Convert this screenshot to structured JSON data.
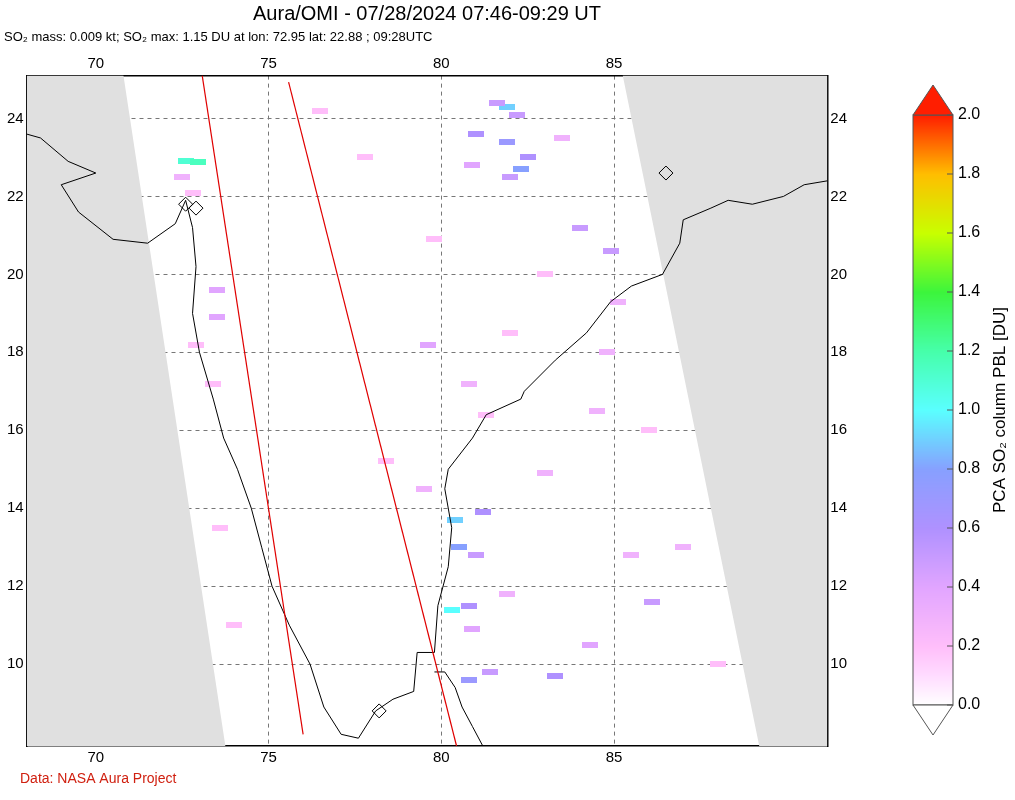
{
  "chart_data": {
    "type": "scatter",
    "title": "Aura/OMI - 07/28/2024 07:46-09:29 UT",
    "subtitle": "SO₂ mass: 0.009 kt; SO₂ max: 1.15 DU at lon: 72.95 lat: 22.88 ; 09:28UTC",
    "source": "Data: NASA Aura Project",
    "xlim": [
      68.0,
      91.17
    ],
    "xticks": [
      70,
      75,
      80,
      85
    ],
    "ylim": [
      7.9,
      25.1
    ],
    "yticks": [
      10,
      12,
      14,
      16,
      18,
      20,
      22,
      24
    ],
    "grid": true,
    "points": {
      "lon": [
        72.6,
        72.95,
        72.5,
        72.8,
        73.5,
        73.5,
        72.9,
        73.4,
        81.9,
        81.6,
        82.2,
        81.0,
        81.9,
        82.5,
        82.3,
        82.0,
        80.9,
        83.5,
        84.0,
        84.9,
        85.1,
        84.8,
        79.6,
        80.8,
        81.3,
        80.4,
        81.2,
        80.5,
        81.0,
        80.3,
        80.8,
        80.9,
        81.9,
        80.8,
        81.4,
        83.3,
        84.3,
        86.1,
        85.5,
        87.0,
        83.0,
        86.0,
        78.4,
        79.5,
        82.0,
        76.5,
        77.8,
        84.5,
        88.0,
        83.0,
        79.8,
        74.0,
        73.6
      ],
      "lat": [
        22.9,
        22.88,
        22.5,
        22.1,
        19.6,
        18.9,
        18.2,
        17.2,
        24.3,
        24.4,
        24.1,
        23.6,
        23.4,
        23.0,
        22.7,
        22.5,
        22.8,
        23.5,
        21.2,
        20.6,
        19.3,
        18.0,
        18.2,
        17.2,
        16.4,
        13.7,
        13.9,
        13.0,
        12.8,
        11.4,
        11.5,
        10.9,
        11.8,
        9.6,
        9.8,
        9.7,
        10.5,
        11.6,
        12.8,
        13.0,
        14.9,
        16.0,
        15.2,
        14.5,
        18.5,
        24.2,
        23.0,
        16.5,
        10.0,
        20.0,
        20.9,
        11.0,
        13.5
      ],
      "values": [
        1.1,
        1.15,
        0.3,
        0.2,
        0.4,
        0.4,
        0.2,
        0.2,
        0.9,
        0.5,
        0.5,
        0.6,
        0.7,
        0.6,
        0.8,
        0.5,
        0.4,
        0.3,
        0.5,
        0.5,
        0.3,
        0.3,
        0.4,
        0.3,
        0.2,
        0.9,
        0.6,
        0.8,
        0.5,
        1.0,
        0.6,
        0.4,
        0.3,
        0.7,
        0.5,
        0.6,
        0.4,
        0.5,
        0.3,
        0.3,
        0.3,
        0.2,
        0.2,
        0.3,
        0.2,
        0.2,
        0.2,
        0.3,
        0.2,
        0.2,
        0.2,
        0.2,
        0.2
      ]
    },
    "coastlines": [
      [
        [
          68.0,
          23.6
        ],
        [
          68.4,
          23.5
        ],
        [
          69.2,
          22.9
        ],
        [
          70.0,
          22.6
        ],
        [
          69.0,
          22.3
        ],
        [
          69.5,
          21.6
        ],
        [
          70.5,
          20.9
        ],
        [
          71.5,
          20.8
        ],
        [
          72.3,
          21.3
        ],
        [
          72.6,
          21.9
        ],
        [
          72.8,
          21.2
        ],
        [
          72.9,
          20.2
        ],
        [
          72.8,
          19.0
        ],
        [
          73.0,
          18.0
        ],
        [
          73.4,
          16.8
        ],
        [
          73.7,
          15.8
        ],
        [
          74.1,
          15.0
        ],
        [
          74.5,
          14.0
        ],
        [
          74.8,
          13.0
        ],
        [
          75.1,
          12.0
        ],
        [
          75.6,
          11.0
        ],
        [
          76.2,
          10.0
        ],
        [
          76.6,
          8.9
        ],
        [
          77.1,
          8.2
        ],
        [
          77.6,
          8.1
        ],
        [
          78.1,
          8.8
        ],
        [
          78.6,
          9.1
        ],
        [
          79.2,
          9.3
        ],
        [
          79.3,
          10.3
        ],
        [
          79.8,
          10.3
        ],
        [
          79.9,
          11.5
        ],
        [
          80.2,
          12.5
        ],
        [
          80.3,
          13.5
        ],
        [
          80.1,
          14.5
        ],
        [
          80.2,
          15.0
        ],
        [
          80.9,
          15.8
        ],
        [
          81.3,
          16.4
        ],
        [
          82.3,
          16.8
        ],
        [
          82.4,
          17.0
        ],
        [
          83.3,
          17.8
        ],
        [
          84.2,
          18.5
        ],
        [
          84.9,
          19.3
        ],
        [
          85.5,
          19.7
        ],
        [
          86.4,
          20.0
        ],
        [
          86.9,
          20.8
        ],
        [
          87.0,
          21.4
        ],
        [
          87.8,
          21.7
        ],
        [
          88.3,
          21.9
        ],
        [
          89.0,
          21.8
        ],
        [
          89.9,
          22.0
        ],
        [
          90.5,
          22.3
        ],
        [
          91.17,
          22.4
        ]
      ],
      [
        [
          79.8,
          9.8
        ],
        [
          80.1,
          9.8
        ],
        [
          80.4,
          9.4
        ],
        [
          80.6,
          8.9
        ],
        [
          80.9,
          8.4
        ],
        [
          81.2,
          7.9
        ]
      ]
    ],
    "swath_edges": [
      [
        [
          73.08,
          25.1
        ],
        [
          76.0,
          8.2
        ]
      ],
      [
        [
          75.58,
          24.93
        ],
        [
          80.44,
          7.9
        ]
      ]
    ],
    "no_data_regions": [
      [
        [
          68.0,
          25.1
        ],
        [
          70.8,
          25.1
        ],
        [
          73.75,
          7.9
        ],
        [
          68.0,
          7.9
        ]
      ],
      [
        [
          85.25,
          25.1
        ],
        [
          91.17,
          25.1
        ],
        [
          91.17,
          7.9
        ],
        [
          89.2,
          7.9
        ]
      ]
    ],
    "markers": [
      [
        72.6,
        21.8
      ],
      [
        72.9,
        21.7
      ],
      [
        78.2,
        8.8
      ],
      [
        86.5,
        22.6
      ]
    ],
    "colorbar": {
      "label": "PCA SO₂ column PBL [DU]",
      "range": [
        0,
        2
      ],
      "ticks": [
        {
          "value": 0,
          "label": "0.0"
        },
        {
          "value": 0.2,
          "label": "0.2"
        },
        {
          "value": 0.4,
          "label": "0.4"
        },
        {
          "value": 0.6,
          "label": "0.6"
        },
        {
          "value": 0.8,
          "label": "0.8"
        },
        {
          "value": 1,
          "label": "1.0"
        },
        {
          "value": 1.2,
          "label": "1.2"
        },
        {
          "value": 1.4,
          "label": "1.4"
        },
        {
          "value": 1.6,
          "label": "1.6"
        },
        {
          "value": 1.8,
          "label": "1.8"
        },
        {
          "value": 2,
          "label": "2.0"
        }
      ]
    }
  }
}
